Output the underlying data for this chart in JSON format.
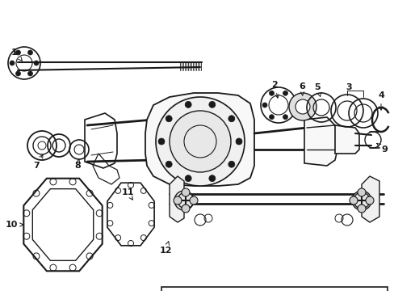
{
  "bg_color": "#ffffff",
  "line_color": "#1a1a1a",
  "figsize": [
    4.89,
    3.6
  ],
  "dpi": 100,
  "gray": "#888888",
  "light_gray": "#cccccc"
}
